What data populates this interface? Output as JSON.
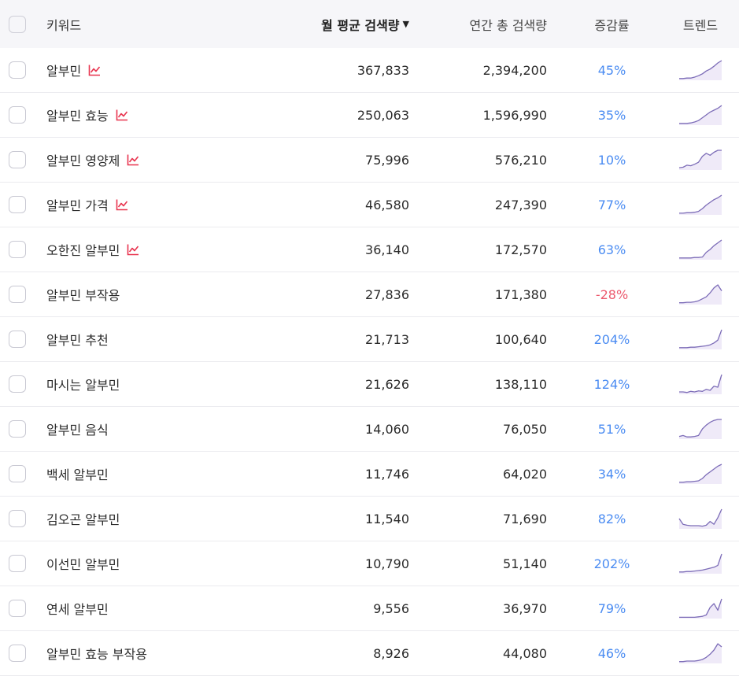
{
  "header": {
    "keyword": "키워드",
    "monthly": "월 평균 검색량",
    "yearly": "연간 총 검색량",
    "rate": "증감률",
    "trend": "트렌드"
  },
  "colors": {
    "positive": "#4b8cf2",
    "negative": "#ec5a6e",
    "trending_icon": "#e8344f",
    "sparkline_stroke": "#7d6db8",
    "sparkline_fill": "#efeaf8"
  },
  "rows": [
    {
      "keyword": "알부민",
      "trending": true,
      "monthly": "367,833",
      "yearly": "2,394,200",
      "rate": "45%",
      "negative": false,
      "spark": [
        2,
        2,
        3,
        3,
        5,
        8,
        12,
        18,
        22,
        28,
        35,
        40
      ]
    },
    {
      "keyword": "알부민 효능",
      "trending": true,
      "monthly": "250,063",
      "yearly": "1,596,990",
      "rate": "35%",
      "negative": false,
      "spark": [
        2,
        2,
        2,
        3,
        5,
        8,
        14,
        20,
        26,
        30,
        34,
        40
      ]
    },
    {
      "keyword": "알부민 영양제",
      "trending": true,
      "monthly": "75,996",
      "yearly": "576,210",
      "rate": "10%",
      "negative": false,
      "spark": [
        3,
        4,
        8,
        7,
        10,
        14,
        26,
        32,
        28,
        34,
        38,
        38
      ]
    },
    {
      "keyword": "알부민 가격",
      "trending": true,
      "monthly": "46,580",
      "yearly": "247,390",
      "rate": "77%",
      "negative": false,
      "spark": [
        2,
        2,
        3,
        3,
        4,
        6,
        12,
        20,
        26,
        32,
        36,
        42
      ]
    },
    {
      "keyword": "오한진 알부민",
      "trending": true,
      "monthly": "36,140",
      "yearly": "172,570",
      "rate": "63%",
      "negative": false,
      "spark": [
        2,
        2,
        2,
        2,
        3,
        3,
        4,
        14,
        20,
        28,
        34,
        40
      ]
    },
    {
      "keyword": "알부민 부작용",
      "trending": false,
      "monthly": "27,836",
      "yearly": "171,380",
      "rate": "-28%",
      "negative": true,
      "spark": [
        2,
        2,
        3,
        3,
        4,
        6,
        10,
        14,
        22,
        32,
        38,
        26
      ]
    },
    {
      "keyword": "알부민 추천",
      "trending": false,
      "monthly": "21,713",
      "yearly": "100,640",
      "rate": "204%",
      "negative": false,
      "spark": [
        2,
        2,
        2,
        3,
        3,
        4,
        5,
        6,
        8,
        12,
        18,
        40
      ]
    },
    {
      "keyword": "마시는 알부민",
      "trending": false,
      "monthly": "21,626",
      "yearly": "138,110",
      "rate": "124%",
      "negative": false,
      "spark": [
        3,
        3,
        2,
        4,
        3,
        5,
        4,
        8,
        6,
        14,
        12,
        36
      ]
    },
    {
      "keyword": "알부민 음식",
      "trending": false,
      "monthly": "14,060",
      "yearly": "76,050",
      "rate": "51%",
      "negative": false,
      "spark": [
        4,
        6,
        3,
        3,
        4,
        6,
        20,
        28,
        34,
        38,
        40,
        40
      ]
    },
    {
      "keyword": "백세 알부민",
      "trending": false,
      "monthly": "11,746",
      "yearly": "64,020",
      "rate": "34%",
      "negative": false,
      "spark": [
        2,
        2,
        3,
        3,
        4,
        5,
        10,
        18,
        24,
        30,
        36,
        40
      ]
    },
    {
      "keyword": "김오곤 알부민",
      "trending": false,
      "monthly": "11,540",
      "yearly": "71,690",
      "rate": "82%",
      "negative": false,
      "spark": [
        20,
        8,
        6,
        5,
        5,
        5,
        4,
        6,
        14,
        8,
        22,
        40
      ]
    },
    {
      "keyword": "이선민 알부민",
      "trending": false,
      "monthly": "10,790",
      "yearly": "51,140",
      "rate": "202%",
      "negative": false,
      "spark": [
        2,
        2,
        3,
        3,
        4,
        5,
        6,
        8,
        10,
        12,
        16,
        40
      ]
    },
    {
      "keyword": "연세 알부민",
      "trending": false,
      "monthly": "9,556",
      "yearly": "36,970",
      "rate": "79%",
      "negative": false,
      "spark": [
        1,
        1,
        1,
        1,
        1,
        2,
        3,
        6,
        22,
        30,
        16,
        40
      ]
    },
    {
      "keyword": "알부민 효능 부작용",
      "trending": false,
      "monthly": "8,926",
      "yearly": "44,080",
      "rate": "46%",
      "negative": false,
      "spark": [
        2,
        2,
        3,
        3,
        3,
        4,
        6,
        10,
        16,
        24,
        36,
        30
      ]
    }
  ]
}
